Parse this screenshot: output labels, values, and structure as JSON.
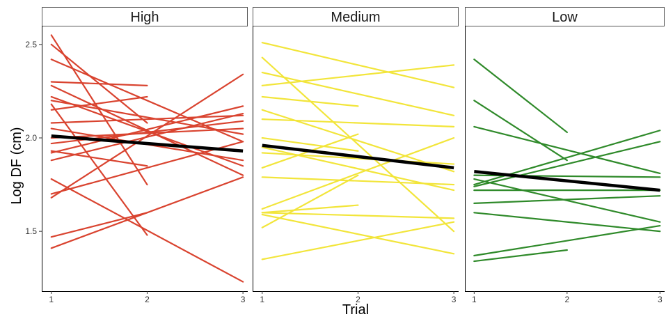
{
  "chart_data": {
    "type": "line",
    "ylabel": "Log DF (cm)",
    "xlabel": "Trial",
    "x_ticks": [
      "1",
      "2",
      "3"
    ],
    "y_ticks": [
      "1.5",
      "2.0",
      "2.5"
    ],
    "ylim": [
      1.18,
      2.6
    ],
    "xlim": [
      0.9,
      3.05
    ],
    "grid": false,
    "legend": "none",
    "trend_color": "#000000",
    "panels": [
      {
        "title": "High",
        "color": "#d9432f",
        "trend": [
          [
            1,
            2.01
          ],
          [
            3,
            1.93
          ]
        ],
        "subjects": [
          [
            [
              1,
              2.55
            ],
            [
              2,
              1.75
            ]
          ],
          [
            [
              1,
              2.5
            ],
            [
              2,
              2.08
            ]
          ],
          [
            [
              1,
              2.42
            ],
            [
              3,
              1.98
            ]
          ],
          [
            [
              1,
              2.3
            ],
            [
              2,
              2.28
            ]
          ],
          [
            [
              1,
              2.28
            ],
            [
              3,
              1.8
            ]
          ],
          [
            [
              1,
              2.22
            ],
            [
              3,
              1.85
            ]
          ],
          [
            [
              1,
              2.2
            ],
            [
              3,
              2.02
            ]
          ],
          [
            [
              1,
              2.18
            ],
            [
              2,
              1.48
            ]
          ],
          [
            [
              1,
              2.15
            ],
            [
              2,
              2.22
            ]
          ],
          [
            [
              1,
              2.08
            ],
            [
              3,
              2.12
            ]
          ],
          [
            [
              1,
              2.05
            ],
            [
              3,
              1.88
            ]
          ],
          [
            [
              1,
              2.0
            ],
            [
              3,
              2.05
            ]
          ],
          [
            [
              1,
              1.97
            ],
            [
              3,
              2.09
            ]
          ],
          [
            [
              1,
              1.93
            ],
            [
              2,
              1.85
            ]
          ],
          [
            [
              1,
              1.88
            ],
            [
              3,
              2.13
            ]
          ],
          [
            [
              1,
              1.78
            ],
            [
              3,
              1.23
            ]
          ],
          [
            [
              1,
              1.7
            ],
            [
              3,
              1.98
            ]
          ],
          [
            [
              1,
              1.68
            ],
            [
              3,
              2.34
            ]
          ],
          [
            [
              1,
              1.92
            ],
            [
              3,
              2.17
            ]
          ],
          [
            [
              1,
              1.47
            ],
            [
              2,
              1.6
            ]
          ],
          [
            [
              1,
              1.41
            ],
            [
              3,
              1.79
            ]
          ]
        ]
      },
      {
        "title": "Medium",
        "color": "#f2e53a",
        "trend": [
          [
            1,
            1.96
          ],
          [
            3,
            1.84
          ]
        ],
        "subjects": [
          [
            [
              1,
              2.51
            ],
            [
              3,
              2.27
            ]
          ],
          [
            [
              1,
              2.43
            ],
            [
              3,
              1.5
            ]
          ],
          [
            [
              1,
              2.35
            ],
            [
              3,
              2.12
            ]
          ],
          [
            [
              1,
              2.28
            ],
            [
              3,
              2.39
            ]
          ],
          [
            [
              1,
              2.22
            ],
            [
              2,
              2.17
            ]
          ],
          [
            [
              1,
              2.15
            ],
            [
              3,
              1.82
            ]
          ],
          [
            [
              1,
              2.1
            ],
            [
              3,
              2.06
            ]
          ],
          [
            [
              1,
              2.0
            ],
            [
              2,
              1.93
            ]
          ],
          [
            [
              1,
              1.95
            ],
            [
              3,
              1.72
            ]
          ],
          [
            [
              1,
              1.92
            ],
            [
              3,
              1.86
            ]
          ],
          [
            [
              1,
              1.84
            ],
            [
              2,
              2.02
            ]
          ],
          [
            [
              1,
              1.79
            ],
            [
              3,
              1.75
            ]
          ],
          [
            [
              1,
              1.62
            ],
            [
              3,
              2.0
            ]
          ],
          [
            [
              1,
              1.6
            ],
            [
              2,
              1.64
            ]
          ],
          [
            [
              1,
              1.6
            ],
            [
              3,
              1.57
            ]
          ],
          [
            [
              1,
              1.52
            ],
            [
              2,
              1.8
            ]
          ],
          [
            [
              1,
              1.59
            ],
            [
              3,
              1.38
            ]
          ],
          [
            [
              1,
              1.35
            ],
            [
              3,
              1.55
            ]
          ]
        ]
      },
      {
        "title": "Low",
        "color": "#2f8a2a",
        "trend": [
          [
            1,
            1.82
          ],
          [
            3,
            1.72
          ]
        ],
        "subjects": [
          [
            [
              1,
              2.42
            ],
            [
              2,
              2.03
            ]
          ],
          [
            [
              1,
              2.2
            ],
            [
              2,
              1.88
            ]
          ],
          [
            [
              1,
              2.06
            ],
            [
              3,
              1.81
            ]
          ],
          [
            [
              1,
              1.8
            ],
            [
              3,
              1.79
            ]
          ],
          [
            [
              1,
              1.75
            ],
            [
              3,
              2.04
            ]
          ],
          [
            [
              1,
              1.74
            ],
            [
              3,
              1.98
            ]
          ],
          [
            [
              1,
              1.72
            ],
            [
              3,
              1.72
            ]
          ],
          [
            [
              1,
              1.65
            ],
            [
              3,
              1.69
            ]
          ],
          [
            [
              1,
              1.6
            ],
            [
              3,
              1.5
            ]
          ],
          [
            [
              1,
              1.78
            ],
            [
              3,
              1.55
            ]
          ],
          [
            [
              1,
              1.37
            ],
            [
              3,
              1.53
            ]
          ],
          [
            [
              1,
              1.34
            ],
            [
              2,
              1.4
            ]
          ]
        ]
      }
    ]
  }
}
